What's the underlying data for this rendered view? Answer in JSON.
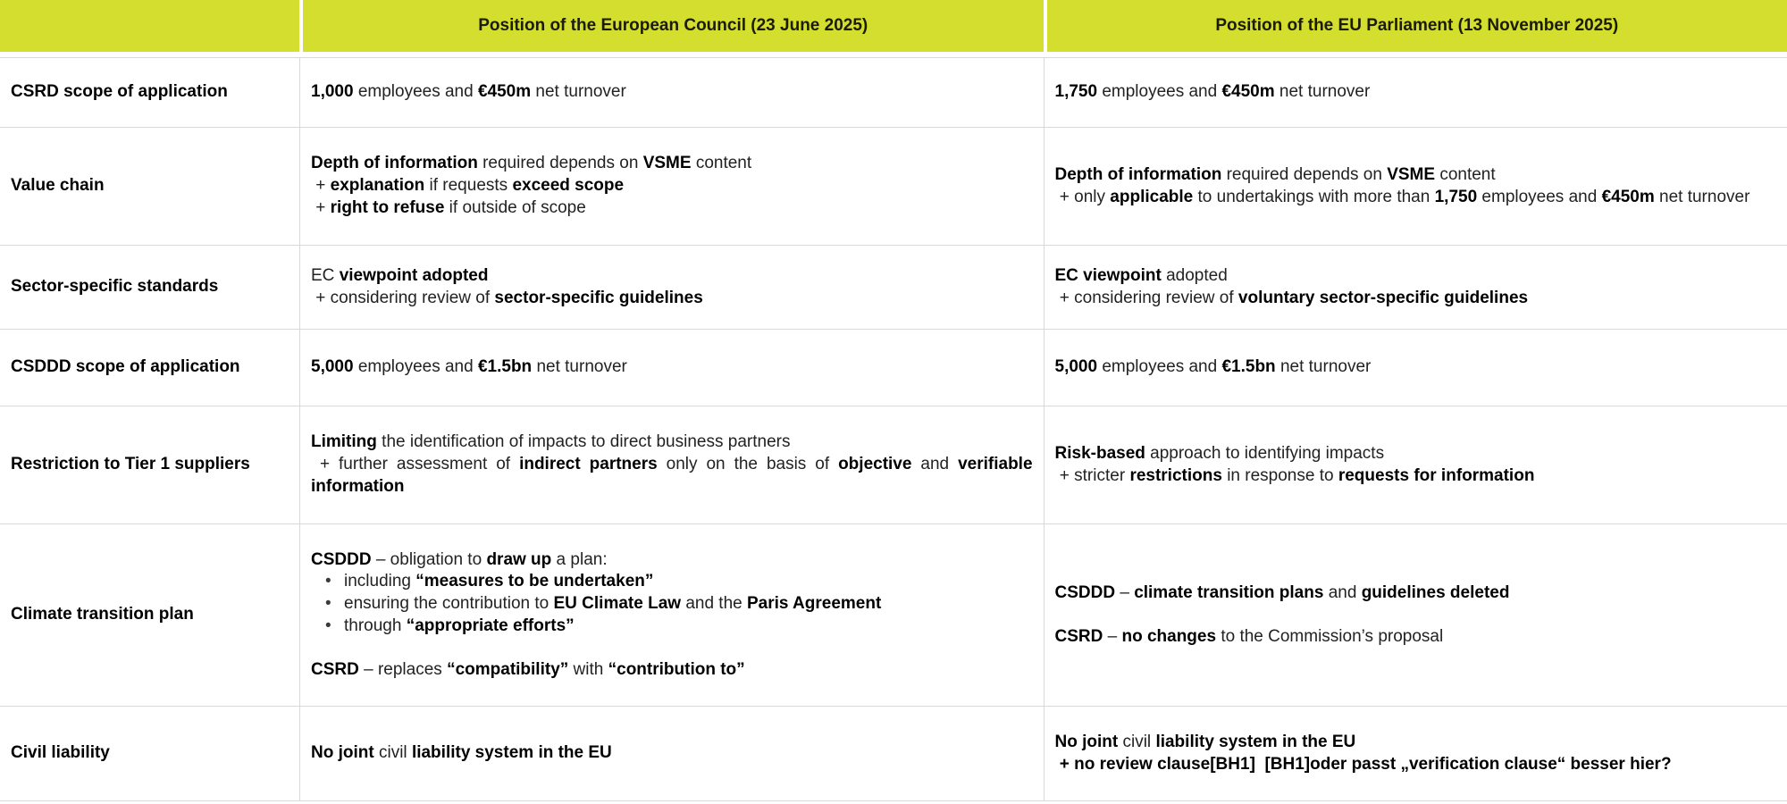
{
  "colors": {
    "header_bg": "#d3de2e",
    "border": "#d9d9d9",
    "body_text": "#222222",
    "bold_text": "#000000"
  },
  "table": {
    "header": {
      "empty": "",
      "council": "Position of the European Council (23 June 2025)",
      "parliament": "Position of the EU Parliament (13 November 2025)"
    },
    "rows": [
      {
        "label": "CSRD scope of application",
        "council": [
          {
            "type": "p",
            "segments": [
              {
                "t": "1,000",
                "b": true
              },
              {
                "t": " employees and ",
                "b": false
              },
              {
                "t": "€450m",
                "b": true
              },
              {
                "t": " net turnover",
                "b": false
              }
            ]
          }
        ],
        "parliament": [
          {
            "type": "p",
            "segments": [
              {
                "t": "1,750",
                "b": true
              },
              {
                "t": " employees and ",
                "b": false
              },
              {
                "t": "€450m",
                "b": true
              },
              {
                "t": " net turnover",
                "b": false
              }
            ]
          }
        ]
      },
      {
        "label": "Value chain",
        "council": [
          {
            "type": "p",
            "segments": [
              {
                "t": "Depth of information",
                "b": true
              },
              {
                "t": " required depends on ",
                "b": false
              },
              {
                "t": "VSME",
                "b": true
              },
              {
                "t": " content",
                "b": false
              }
            ]
          },
          {
            "type": "p",
            "segments": [
              {
                "t": " + ",
                "b": false
              },
              {
                "t": "explanation",
                "b": true
              },
              {
                "t": " if requests ",
                "b": false
              },
              {
                "t": "exceed scope",
                "b": true
              }
            ]
          },
          {
            "type": "p",
            "segments": [
              {
                "t": " + ",
                "b": false
              },
              {
                "t": "right to refuse",
                "b": true
              },
              {
                "t": " if outside of scope",
                "b": false
              }
            ]
          }
        ],
        "parliament": [
          {
            "type": "p",
            "segments": [
              {
                "t": "Depth of information",
                "b": true
              },
              {
                "t": " required depends on ",
                "b": false
              },
              {
                "t": "VSME",
                "b": true
              },
              {
                "t": " content",
                "b": false
              }
            ]
          },
          {
            "type": "p",
            "segments": [
              {
                "t": " + only ",
                "b": false
              },
              {
                "t": "applicable",
                "b": true
              },
              {
                "t": " to undertakings with more than ",
                "b": false
              },
              {
                "t": "1,750",
                "b": true
              },
              {
                "t": " employees and ",
                "b": false
              },
              {
                "t": "€450m",
                "b": true
              },
              {
                "t": " net turnover",
                "b": false
              }
            ]
          }
        ]
      },
      {
        "label": "Sector-specific standards",
        "council": [
          {
            "type": "p",
            "segments": [
              {
                "t": "EC ",
                "b": false
              },
              {
                "t": "viewpoint adopted",
                "b": true
              }
            ]
          },
          {
            "type": "p",
            "segments": [
              {
                "t": " + considering review of ",
                "b": false
              },
              {
                "t": "sector-specific guidelines",
                "b": true
              }
            ]
          }
        ],
        "parliament": [
          {
            "type": "p",
            "segments": [
              {
                "t": "EC viewpoint",
                "b": true
              },
              {
                "t": " adopted",
                "b": false
              }
            ]
          },
          {
            "type": "p",
            "segments": [
              {
                "t": " + considering review of ",
                "b": false
              },
              {
                "t": "voluntary sector-specific guidelines",
                "b": true
              }
            ]
          }
        ]
      },
      {
        "label": "CSDDD scope of application",
        "council": [
          {
            "type": "p",
            "segments": [
              {
                "t": "5,000",
                "b": true
              },
              {
                "t": " employees and ",
                "b": false
              },
              {
                "t": "€1.5bn",
                "b": true
              },
              {
                "t": " net turnover",
                "b": false
              }
            ]
          }
        ],
        "parliament": [
          {
            "type": "p",
            "segments": [
              {
                "t": "5,000",
                "b": true
              },
              {
                "t": " employees and ",
                "b": false
              },
              {
                "t": "€1.5bn",
                "b": true
              },
              {
                "t": " net turnover",
                "b": false
              }
            ]
          }
        ]
      },
      {
        "label": "Restriction to Tier 1 suppliers",
        "council": [
          {
            "type": "p",
            "segments": [
              {
                "t": "Limiting",
                "b": true
              },
              {
                "t": " the identification of impacts to direct business partners",
                "b": false
              }
            ]
          },
          {
            "type": "p",
            "segments": [
              {
                "t": " + further assessment of ",
                "b": false
              },
              {
                "t": "indirect partners",
                "b": true
              },
              {
                "t": " only on the basis of ",
                "b": false
              },
              {
                "t": "objective",
                "b": true
              },
              {
                "t": " and ",
                "b": false
              },
              {
                "t": "verifiable information",
                "b": true
              }
            ]
          }
        ],
        "parliament": [
          {
            "type": "p",
            "segments": [
              {
                "t": "Risk-based",
                "b": true
              },
              {
                "t": " approach to identifying impacts",
                "b": false
              }
            ]
          },
          {
            "type": "p",
            "segments": [
              {
                "t": " + stricter ",
                "b": false
              },
              {
                "t": "restrictions",
                "b": true
              },
              {
                "t": " in response to ",
                "b": false
              },
              {
                "t": "requests for information",
                "b": true
              }
            ]
          }
        ]
      },
      {
        "label": "Climate transition plan",
        "council": [
          {
            "type": "p",
            "segments": [
              {
                "t": "CSDDD",
                "b": true
              },
              {
                "t": " – obligation to ",
                "b": false
              },
              {
                "t": "draw up",
                "b": true
              },
              {
                "t": " a plan:",
                "b": false
              }
            ]
          },
          {
            "type": "bullet",
            "segments": [
              {
                "t": "including ",
                "b": false
              },
              {
                "t": "“measures to be undertaken”",
                "b": true
              }
            ]
          },
          {
            "type": "bullet",
            "segments": [
              {
                "t": "ensuring the contribution to ",
                "b": false
              },
              {
                "t": "EU Climate Law",
                "b": true
              },
              {
                "t": " and the ",
                "b": false
              },
              {
                "t": "Paris Agreement",
                "b": true
              }
            ]
          },
          {
            "type": "bullet",
            "segments": [
              {
                "t": "through ",
                "b": false
              },
              {
                "t": "“appropriate efforts”",
                "b": true
              }
            ]
          },
          {
            "type": "gap"
          },
          {
            "type": "p",
            "segments": [
              {
                "t": "CSRD",
                "b": true
              },
              {
                "t": " – replaces ",
                "b": false
              },
              {
                "t": "“compatibility”",
                "b": true
              },
              {
                "t": " with ",
                "b": false
              },
              {
                "t": "“contribution to”",
                "b": true
              }
            ]
          }
        ],
        "parliament": [
          {
            "type": "p",
            "segments": [
              {
                "t": "CSDDD",
                "b": true
              },
              {
                "t": " – ",
                "b": false
              },
              {
                "t": "climate transition plans",
                "b": true
              },
              {
                "t": " and ",
                "b": false
              },
              {
                "t": "guidelines deleted",
                "b": true
              }
            ]
          },
          {
            "type": "gap"
          },
          {
            "type": "p",
            "segments": [
              {
                "t": "CSRD",
                "b": true
              },
              {
                "t": " – ",
                "b": false
              },
              {
                "t": "no changes",
                "b": true
              },
              {
                "t": " to the Commission’s proposal",
                "b": false
              }
            ]
          }
        ]
      },
      {
        "label": "Civil liability",
        "council": [
          {
            "type": "p",
            "segments": [
              {
                "t": "No joint",
                "b": true
              },
              {
                "t": " civil ",
                "b": false
              },
              {
                "t": "liability system in the EU",
                "b": true
              }
            ]
          }
        ],
        "parliament": [
          {
            "type": "p",
            "segments": [
              {
                "t": "No joint",
                "b": true
              },
              {
                "t": " civil ",
                "b": false
              },
              {
                "t": "liability system in the EU",
                "b": true
              }
            ]
          },
          {
            "type": "p",
            "segments": [
              {
                "t": " + no review clause[BH1]  [BH1]oder passt „verification clause“ besser hier?",
                "b": true
              }
            ]
          }
        ]
      }
    ]
  }
}
